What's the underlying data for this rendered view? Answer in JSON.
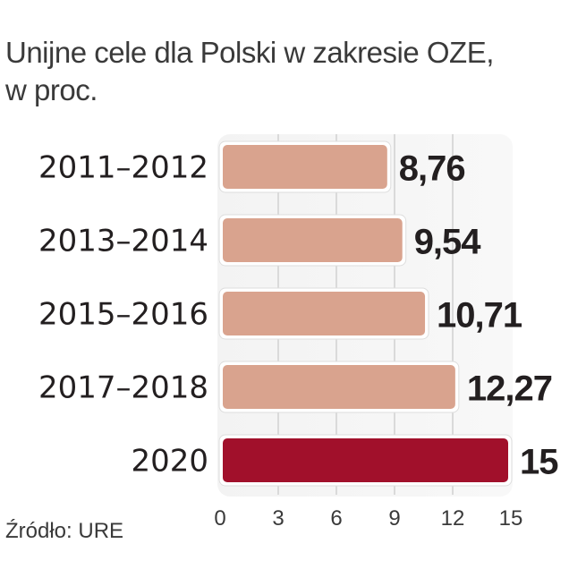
{
  "title_line1": "Unijne cele dla Polski w zakresie OZE,",
  "title_line2": "w proc.",
  "source": "Źródło: URE",
  "chart_data": {
    "type": "bar",
    "orientation": "horizontal",
    "categories": [
      "2011–2012",
      "2013–2014",
      "2015–2016",
      "2017–2018",
      "2020"
    ],
    "values": [
      8.76,
      9.54,
      10.71,
      12.27,
      15
    ],
    "value_labels": [
      "8,76",
      "9,54",
      "10,71",
      "12,27",
      "15"
    ],
    "xlim": [
      0,
      15
    ],
    "xticks": [
      0,
      3,
      6,
      9,
      12,
      15
    ],
    "xtick_labels": [
      "0",
      "3",
      "6",
      "9",
      "12",
      "15"
    ],
    "grid": true,
    "colors": [
      "#d9a38e",
      "#d9a38e",
      "#d9a38e",
      "#d9a38e",
      "#a1102b"
    ]
  }
}
